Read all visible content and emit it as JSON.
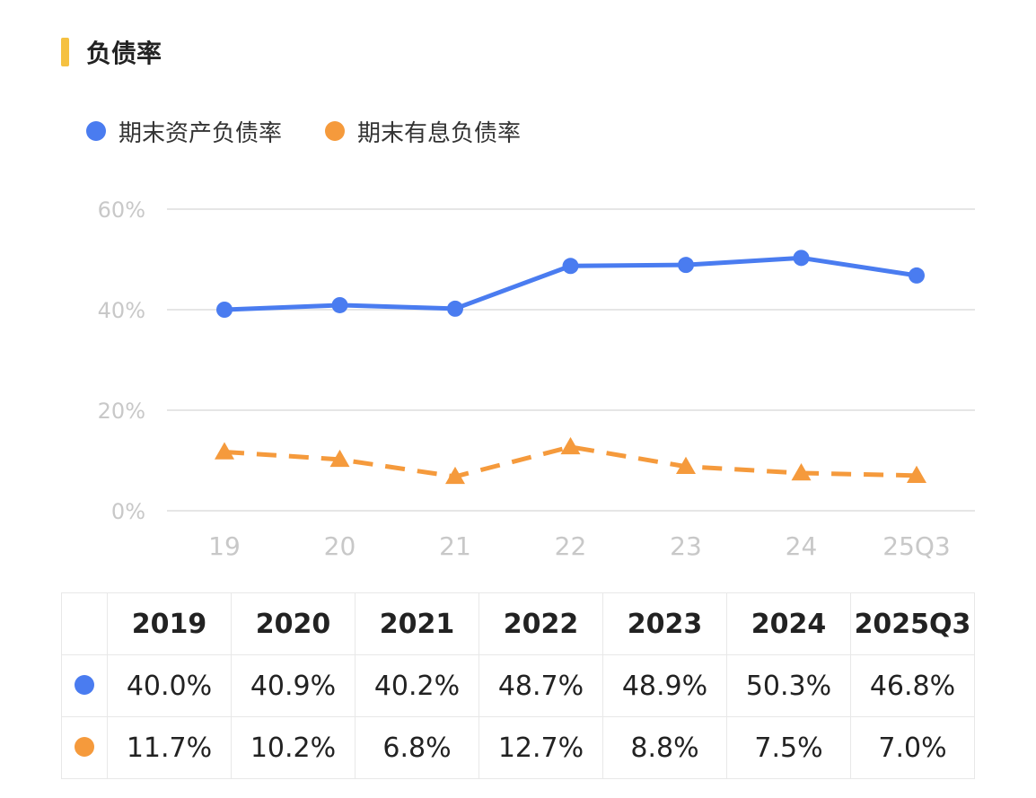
{
  "title": "负债率",
  "colors": {
    "title_accent": "#f5c141",
    "series_1": "#4a7cf0",
    "series_2": "#f59a3c",
    "grid": "#e6e6e6",
    "tick_label": "#c8c8c8"
  },
  "chart_data": {
    "type": "line",
    "x": [
      "19",
      "20",
      "21",
      "22",
      "23",
      "24",
      "25Q3"
    ],
    "y_ticks": [
      "60%",
      "40%",
      "20%",
      "0%"
    ],
    "ylim": [
      0,
      60
    ],
    "grid": true,
    "legend": "top-left",
    "series": [
      {
        "name": "期末资产负债率",
        "values": [
          40.0,
          40.9,
          40.2,
          48.7,
          48.9,
          50.3,
          46.8
        ],
        "marker": "circle",
        "line_style": "solid",
        "color": "#4a7cf0"
      },
      {
        "name": "期末有息负债率",
        "values": [
          11.7,
          10.2,
          6.8,
          12.7,
          8.8,
          7.5,
          7.0
        ],
        "marker": "triangle",
        "line_style": "dashed",
        "color": "#f59a3c"
      }
    ]
  },
  "table": {
    "headers": [
      "2019",
      "2020",
      "2021",
      "2022",
      "2023",
      "2024",
      "2025Q3"
    ],
    "rows": [
      {
        "marker_color": "#4a7cf0",
        "values": [
          "40.0%",
          "40.9%",
          "40.2%",
          "48.7%",
          "48.9%",
          "50.3%",
          "46.8%"
        ]
      },
      {
        "marker_color": "#f59a3c",
        "values": [
          "11.7%",
          "10.2%",
          "6.8%",
          "12.7%",
          "8.8%",
          "7.5%",
          "7.0%"
        ]
      }
    ]
  }
}
